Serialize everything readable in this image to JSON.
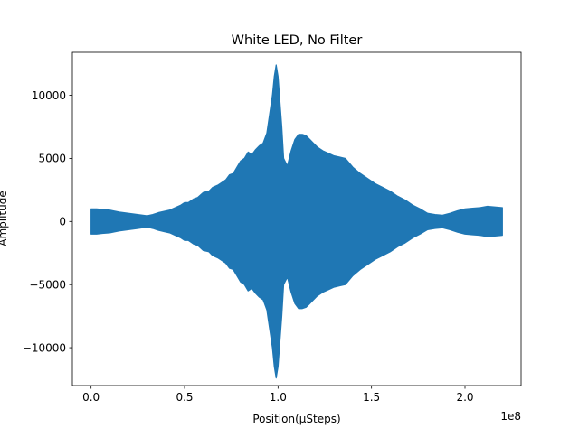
{
  "chart_data": {
    "type": "area",
    "title": "White LED, No Filter",
    "xlabel": "Position(µSteps)",
    "ylabel": "Amplitude",
    "x_offset_label": "1e8",
    "x_scale": 100000000,
    "xlim": [
      -0.1,
      2.3
    ],
    "ylim": [
      -13000,
      13400
    ],
    "x_ticks": [
      {
        "value": 0.0,
        "label": "0.0"
      },
      {
        "value": 0.5,
        "label": "0.5"
      },
      {
        "value": 1.0,
        "label": "1.0"
      },
      {
        "value": 1.5,
        "label": "1.5"
      },
      {
        "value": 2.0,
        "label": "2.0"
      }
    ],
    "y_ticks": [
      {
        "value": -10000,
        "label": "−10000"
      },
      {
        "value": -5000,
        "label": "−5000"
      },
      {
        "value": 0,
        "label": "0"
      },
      {
        "value": 5000,
        "label": "5000"
      },
      {
        "value": 10000,
        "label": "10000"
      }
    ],
    "series_color": "#1f77b4",
    "envelope": {
      "x": [
        0.0,
        0.03,
        0.06,
        0.1,
        0.15,
        0.2,
        0.25,
        0.3,
        0.33,
        0.36,
        0.39,
        0.42,
        0.45,
        0.48,
        0.5,
        0.52,
        0.55,
        0.57,
        0.6,
        0.63,
        0.65,
        0.68,
        0.7,
        0.72,
        0.74,
        0.76,
        0.78,
        0.8,
        0.82,
        0.84,
        0.86,
        0.88,
        0.9,
        0.92,
        0.94,
        0.95,
        0.96,
        0.97,
        0.98,
        0.99,
        1.0,
        1.01,
        1.02,
        1.03,
        1.05,
        1.07,
        1.09,
        1.11,
        1.13,
        1.15,
        1.17,
        1.19,
        1.21,
        1.24,
        1.27,
        1.3,
        1.33,
        1.36,
        1.4,
        1.44,
        1.48,
        1.52,
        1.56,
        1.6,
        1.64,
        1.68,
        1.72,
        1.76,
        1.8,
        1.84,
        1.88,
        1.92,
        1.96,
        2.0,
        2.04,
        2.08,
        2.12,
        2.16,
        2.2
      ],
      "upper": [
        1000,
        1000,
        950,
        900,
        750,
        650,
        550,
        450,
        550,
        700,
        800,
        900,
        1100,
        1300,
        1500,
        1500,
        1800,
        1900,
        2300,
        2400,
        2700,
        2900,
        3100,
        3300,
        3700,
        3800,
        4300,
        4800,
        5000,
        5500,
        5300,
        5700,
        6000,
        6200,
        7000,
        8000,
        9000,
        10000,
        11500,
        12400,
        11500,
        9500,
        7500,
        5000,
        4400,
        5600,
        6500,
        6900,
        6900,
        6800,
        6500,
        6200,
        5900,
        5600,
        5400,
        5200,
        5100,
        5000,
        4300,
        3800,
        3400,
        3000,
        2700,
        2400,
        2000,
        1700,
        1300,
        1000,
        650,
        550,
        500,
        650,
        850,
        1000,
        1050,
        1100,
        1200,
        1150,
        1100
      ],
      "lower": [
        -1000,
        -1000,
        -950,
        -900,
        -750,
        -650,
        -550,
        -450,
        -550,
        -700,
        -800,
        -900,
        -1100,
        -1300,
        -1500,
        -1500,
        -1800,
        -1900,
        -2300,
        -2400,
        -2700,
        -2900,
        -3100,
        -3300,
        -3700,
        -3800,
        -4300,
        -4800,
        -5000,
        -5500,
        -5300,
        -5700,
        -6000,
        -6200,
        -7000,
        -8000,
        -9000,
        -10000,
        -11500,
        -12400,
        -11500,
        -9500,
        -7500,
        -5000,
        -4400,
        -5600,
        -6500,
        -6900,
        -6900,
        -6800,
        -6500,
        -6200,
        -5900,
        -5600,
        -5400,
        -5200,
        -5100,
        -5000,
        -4300,
        -3800,
        -3400,
        -3000,
        -2700,
        -2400,
        -2000,
        -1700,
        -1300,
        -1000,
        -650,
        -550,
        -500,
        -650,
        -850,
        -1000,
        -1050,
        -1100,
        -1200,
        -1150,
        -1100
      ]
    }
  }
}
